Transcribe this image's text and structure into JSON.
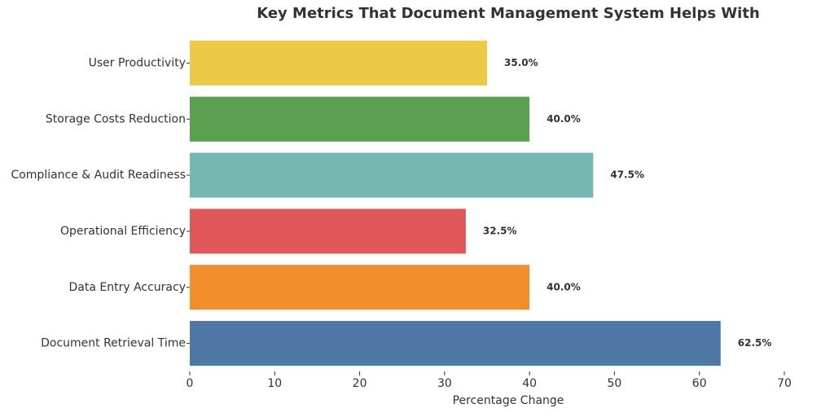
{
  "chart_data": {
    "type": "barh",
    "title": "Key Metrics That Document Management System Helps With",
    "xlabel": "Percentage Change",
    "categories": [
      "User Productivity",
      "Storage Costs Reduction",
      "Compliance & Audit Readiness",
      "Operational Efficiency",
      "Data Entry Accuracy",
      "Document Retrieval Time"
    ],
    "values": [
      35,
      40,
      47.5,
      32.5,
      40,
      62.5
    ],
    "value_labels": [
      "35.0%",
      "40.0%",
      "47.5%",
      "32.5%",
      "40.0%",
      "62.5%"
    ],
    "colors": [
      "#edc948",
      "#59a14f",
      "#76b7b2",
      "#e15759",
      "#f28e2b",
      "#4e79a7"
    ],
    "xlim": [
      0,
      70
    ],
    "xticks": [
      0,
      10,
      20,
      30,
      40,
      50,
      60,
      70
    ],
    "grid": false
  }
}
